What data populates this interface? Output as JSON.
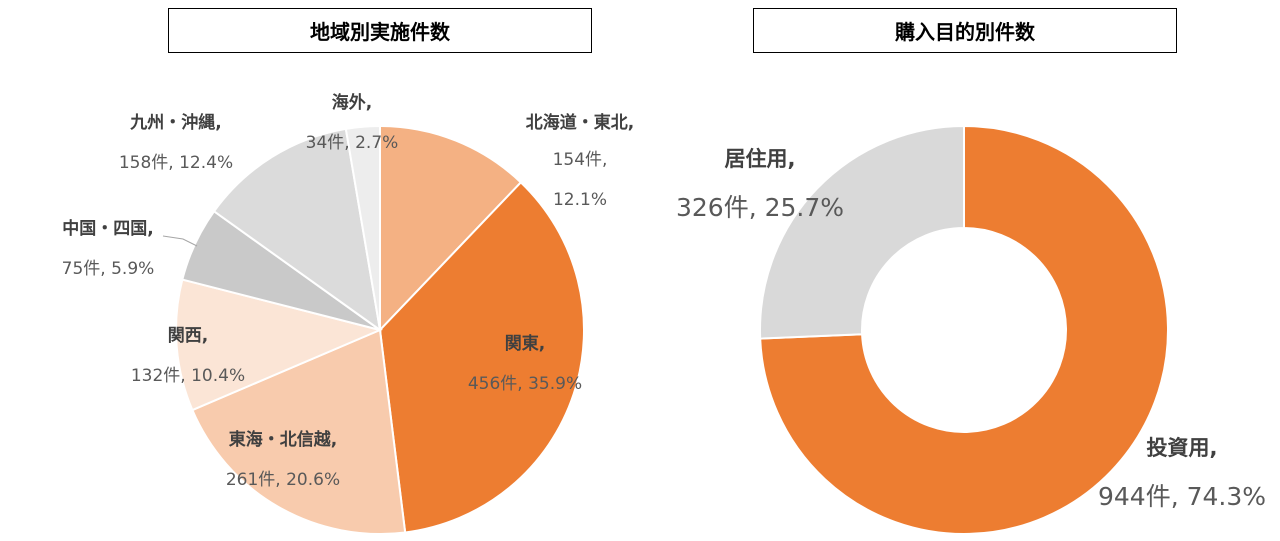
{
  "chart_data": [
    {
      "type": "pie",
      "title": "地域別実施件数",
      "slices": [
        {
          "name": "北海道・東北",
          "count_label": "154件,",
          "pct_label": "12.1%",
          "value": 154,
          "percent": 12.1,
          "color": "#F4B183"
        },
        {
          "name": "関東",
          "count_label": "456件,",
          "pct_label": "35.9%",
          "value": 456,
          "percent": 35.9,
          "color": "#ED7D31"
        },
        {
          "name": "東海・北信越",
          "count_label": "261件,",
          "pct_label": "20.6%",
          "value": 261,
          "percent": 20.6,
          "color": "#F8CBAD"
        },
        {
          "name": "関西",
          "count_label": "132件,",
          "pct_label": "10.4%",
          "value": 132,
          "percent": 10.4,
          "color": "#FBE5D6"
        },
        {
          "name": "中国・四国",
          "count_label": "75件,",
          "pct_label": "5.9%",
          "value": 75,
          "percent": 5.9,
          "color": "#C9C9C9"
        },
        {
          "name": "九州・沖縄",
          "count_label": "158件,",
          "pct_label": "12.4%",
          "value": 158,
          "percent": 12.4,
          "color": "#DBDBDB"
        },
        {
          "name": "海外",
          "count_label": "34件,",
          "pct_label": "2.7%",
          "value": 34,
          "percent": 2.7,
          "color": "#EDEDED"
        }
      ]
    },
    {
      "type": "pie",
      "title": "購入目的別件数",
      "slices": [
        {
          "name": "投資用",
          "count_label": "944件,",
          "pct_label": "74.3%",
          "value": 944,
          "percent": 74.3,
          "color": "#ED7D31"
        },
        {
          "name": "居住用",
          "count_label": "326件,",
          "pct_label": "25.7%",
          "value": 326,
          "percent": 25.7,
          "color": "#D9D9D9"
        }
      ]
    }
  ]
}
